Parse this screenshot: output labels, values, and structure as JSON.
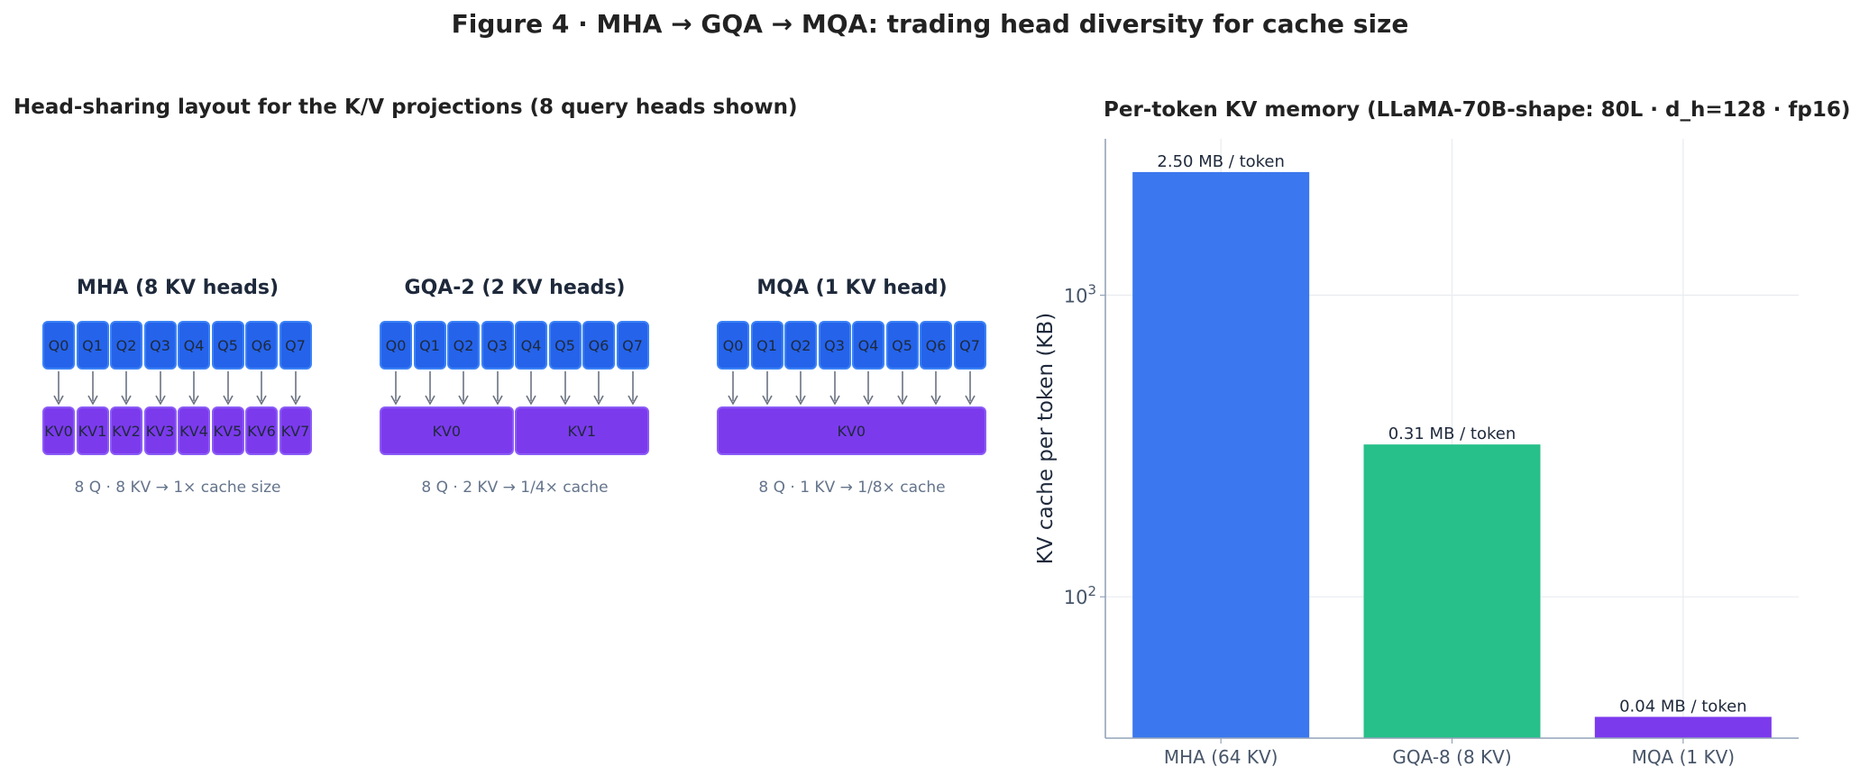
{
  "figure_title": "Figure 4 · MHA → GQA → MQA: trading head diversity for cache size",
  "left_panel": {
    "title": "Head-sharing layout for the K/V projections (8 query heads shown)",
    "diagrams": [
      {
        "title": "MHA  (8 KV heads)",
        "queries": [
          "Q0",
          "Q1",
          "Q2",
          "Q3",
          "Q4",
          "Q5",
          "Q6",
          "Q7"
        ],
        "kv_heads": [
          "KV0",
          "KV1",
          "KV2",
          "KV3",
          "KV4",
          "KV5",
          "KV6",
          "KV7"
        ],
        "caption": "8 Q  ·  8 KV   →   1× cache size"
      },
      {
        "title": "GQA-2  (2 KV heads)",
        "queries": [
          "Q0",
          "Q1",
          "Q2",
          "Q3",
          "Q4",
          "Q5",
          "Q6",
          "Q7"
        ],
        "kv_heads": [
          "KV0",
          "KV1"
        ],
        "caption": "8 Q  ·  2 KV   →   1/4× cache"
      },
      {
        "title": "MQA  (1 KV head)",
        "queries": [
          "Q0",
          "Q1",
          "Q2",
          "Q3",
          "Q4",
          "Q5",
          "Q6",
          "Q7"
        ],
        "kv_heads": [
          "KV0"
        ],
        "caption": "8 Q  ·  1 KV   →   1/8× cache"
      }
    ]
  },
  "colors": {
    "query": "#2563eb",
    "kv": "#7c3aed",
    "mha_bar": "#3b77ee",
    "gqa_bar": "#27c08a",
    "mqa_bar": "#7c3aed",
    "arrow": "#6b7280"
  },
  "chart_data": {
    "type": "bar",
    "title": "Per-token KV memory (LLaMA-70B-shape: 80L · d_h=128 · fp16)",
    "categories": [
      "MHA (64 KV)",
      "GQA-8 (8 KV)",
      "MQA (1 KV)"
    ],
    "values": [
      2560,
      320,
      40
    ],
    "value_labels": [
      "2.50 MB / token",
      "0.31 MB / token",
      "0.04 MB / token"
    ],
    "ylabel": "KV cache per token (KB)",
    "xlabel": "",
    "yscale": "log",
    "ylim": [
      34,
      3300
    ],
    "yticks": [
      100,
      1000
    ],
    "ytick_labels": [
      "10^2",
      "10^3"
    ],
    "grid": true
  }
}
